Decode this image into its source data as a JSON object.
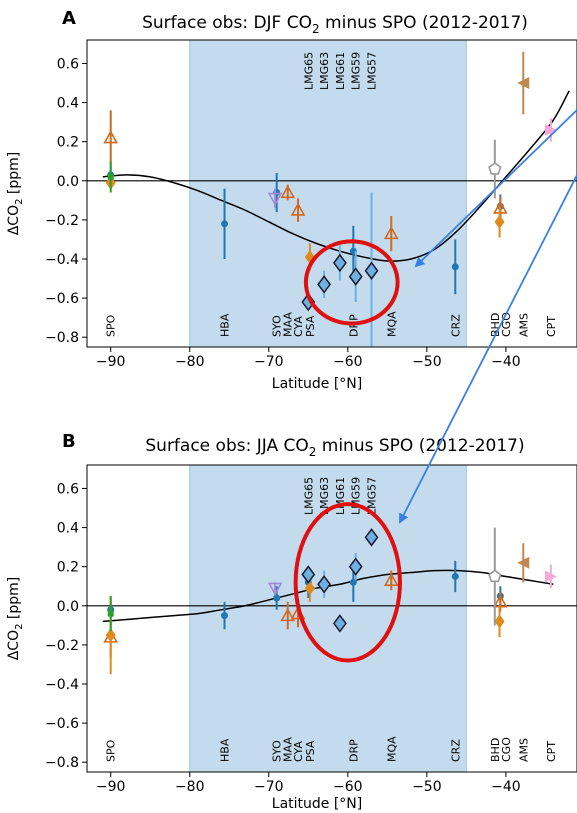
{
  "chart_data": [
    {
      "panel_letter": "A",
      "title": "Surface obs: DJF CO₂ minus SPO (2012-2017)",
      "title_main": "Surface obs: DJF CO",
      "title_sub": "2",
      "title_end": " minus SPO (2012-2017)",
      "type": "scatter",
      "xlabel": "Latitude [°N]",
      "ylabel": "ΔCO₂ [ppm]",
      "ylabel_main": "ΔCO",
      "ylabel_sub": "2",
      "ylabel_end": " [ppm]",
      "xlim": [
        -93,
        -31
      ],
      "ylim": [
        -0.85,
        0.72
      ],
      "xticks": [
        -90,
        -80,
        -70,
        -60,
        -50,
        -40
      ],
      "xtick_labels": [
        "−90",
        "−80",
        "−70",
        "−60",
        "−50",
        "−40"
      ],
      "yticks": [
        0.6,
        0.4,
        0.2,
        0.0,
        -0.2,
        -0.4,
        -0.6,
        -0.8
      ],
      "ytick_labels": [
        "0.6",
        "0.4",
        "0.2",
        "0.0",
        "−0.2",
        "−0.4",
        "−0.6",
        "−0.8"
      ],
      "shaded_region": [
        -80,
        -45
      ],
      "zero_line": 0,
      "fit_curve": {
        "x": [
          -91,
          -88,
          -85,
          -82,
          -79,
          -76,
          -73,
          -70,
          -67,
          -64,
          -61,
          -58,
          -55,
          -52,
          -49,
          -46,
          -43,
          -40,
          -37,
          -34,
          -32
        ],
        "y": [
          0.02,
          0.03,
          0.02,
          -0.01,
          -0.05,
          -0.1,
          -0.15,
          -0.21,
          -0.27,
          -0.32,
          -0.36,
          -0.39,
          -0.41,
          -0.4,
          -0.35,
          -0.25,
          -0.12,
          0.02,
          0.16,
          0.31,
          0.46
        ]
      },
      "station_labels": [
        {
          "text": "SPO",
          "x": -90
        },
        {
          "text": "HBA",
          "x": -75.6
        },
        {
          "text": "SYO",
          "x": -69
        },
        {
          "text": "MAA",
          "x": -67.6
        },
        {
          "text": "CYA",
          "x": -66.3
        },
        {
          "text": "PSA",
          "x": -64.8
        },
        {
          "text": "DRP",
          "x": -59.3
        },
        {
          "text": "MQA",
          "x": -54.5
        },
        {
          "text": "CRZ",
          "x": -46.4
        },
        {
          "text": "BHD",
          "x": -41.4
        },
        {
          "text": "CGO",
          "x": -40.0
        },
        {
          "text": "AMS",
          "x": -37.8
        },
        {
          "text": "CPT",
          "x": -34.3
        }
      ],
      "cruise_labels": [
        {
          "text": "LMG65",
          "x": -65
        },
        {
          "text": "LMG63",
          "x": -63
        },
        {
          "text": "LMG61",
          "x": -61
        },
        {
          "text": "LMG59",
          "x": -59
        },
        {
          "text": "LMG57",
          "x": -57
        }
      ],
      "series": [
        {
          "marker": "circle",
          "color": "#1f77b4",
          "points": [
            {
              "x": -90,
              "y": 0.03,
              "err": 0.05
            },
            {
              "x": -75.6,
              "y": -0.22,
              "err": 0.18
            },
            {
              "x": -69,
              "y": -0.06,
              "err": 0.1
            },
            {
              "x": -59.3,
              "y": -0.36,
              "err": 0.13
            },
            {
              "x": -46.4,
              "y": -0.44,
              "err": 0.14
            },
            {
              "x": -40.7,
              "y": -0.13,
              "err": 0.06
            }
          ]
        },
        {
          "marker": "open-triangle-up",
          "color": "#d2691e",
          "points": [
            {
              "x": -90,
              "y": 0.22,
              "err": 0.14
            },
            {
              "x": -67.6,
              "y": -0.06,
              "err": 0.04
            },
            {
              "x": -66.3,
              "y": -0.15,
              "err": 0.06
            },
            {
              "x": -54.5,
              "y": -0.27,
              "err": 0.09
            },
            {
              "x": -40.7,
              "y": -0.14,
              "err": 0.06
            }
          ]
        },
        {
          "marker": "diamond",
          "color": "#e08a1e",
          "points": [
            {
              "x": -90,
              "y": -0.01,
              "err": 0.04
            },
            {
              "x": -64.8,
              "y": -0.39,
              "err": 0.07
            },
            {
              "x": -40.8,
              "y": -0.21,
              "err": 0.08
            }
          ]
        },
        {
          "marker": "square",
          "color": "#2ca02c",
          "points": [
            {
              "x": -90,
              "y": 0.02,
              "err": 0.08
            }
          ]
        },
        {
          "marker": "open-triangle-down",
          "color": "#a08cd6",
          "points": [
            {
              "x": -69.2,
              "y": -0.09,
              "err": 0.05
            }
          ]
        },
        {
          "marker": "open-pentagon",
          "color": "#999999",
          "points": [
            {
              "x": -41.4,
              "y": 0.06,
              "err": 0.15
            }
          ]
        },
        {
          "marker": "triangle-left",
          "color": "#c08850",
          "points": [
            {
              "x": -37.8,
              "y": 0.5,
              "err": 0.16
            }
          ]
        },
        {
          "marker": "triangle-right",
          "color": "#f7a8d8",
          "points": [
            {
              "x": -34.3,
              "y": 0.26,
              "err": 0.06
            }
          ]
        },
        {
          "marker": "diamond-outline",
          "color": "#6fb0e0",
          "points": [
            {
              "x": -65,
              "y": -0.62,
              "err": 0.04
            },
            {
              "x": -63,
              "y": -0.53,
              "err": 0.07
            },
            {
              "x": -61,
              "y": -0.42,
              "err": 0.09
            },
            {
              "x": -59,
              "y": -0.49,
              "err": 0.13
            },
            {
              "x": -57,
              "y": -0.46,
              "err": 0.4
            }
          ]
        }
      ],
      "highlight_ellipse": {
        "cx": -59.5,
        "cy": -0.52,
        "rx": 5.8,
        "ry": 0.21
      }
    },
    {
      "panel_letter": "B",
      "title": "Surface obs: JJA CO₂ minus SPO (2012-2017)",
      "title_main": "Surface obs: JJA CO",
      "title_sub": "2",
      "title_end": " minus SPO (2012-2017)",
      "type": "scatter",
      "xlabel": "Latitude [°N]",
      "ylabel": "ΔCO₂ [ppm]",
      "ylabel_main": "ΔCO",
      "ylabel_sub": "2",
      "ylabel_end": " [ppm]",
      "xlim": [
        -93,
        -31
      ],
      "ylim": [
        -0.85,
        0.72
      ],
      "xticks": [
        -90,
        -80,
        -70,
        -60,
        -50,
        -40
      ],
      "xtick_labels": [
        "−90",
        "−80",
        "−70",
        "−60",
        "−50",
        "−40"
      ],
      "yticks": [
        0.6,
        0.4,
        0.2,
        0.0,
        -0.2,
        -0.4,
        -0.6,
        -0.8
      ],
      "ytick_labels": [
        "0.6",
        "0.4",
        "0.2",
        "0.0",
        "−0.2",
        "−0.4",
        "−0.6",
        "−0.8"
      ],
      "shaded_region": [
        -80,
        -45
      ],
      "zero_line": 0,
      "fit_curve": {
        "x": [
          -91,
          -88,
          -85,
          -82,
          -79,
          -76,
          -73,
          -70,
          -67,
          -64,
          -61,
          -58,
          -55,
          -52,
          -49,
          -46,
          -43,
          -40,
          -37,
          -34
        ],
        "y": [
          -0.08,
          -0.07,
          -0.06,
          -0.05,
          -0.04,
          -0.02,
          0.0,
          0.03,
          0.06,
          0.09,
          0.11,
          0.14,
          0.16,
          0.17,
          0.18,
          0.18,
          0.17,
          0.15,
          0.13,
          0.11
        ]
      },
      "station_labels": [
        {
          "text": "SPO",
          "x": -90
        },
        {
          "text": "HBA",
          "x": -75.6
        },
        {
          "text": "SYO",
          "x": -69
        },
        {
          "text": "MAA",
          "x": -67.6
        },
        {
          "text": "CYA",
          "x": -66.3
        },
        {
          "text": "PSA",
          "x": -64.8
        },
        {
          "text": "DRP",
          "x": -59.3
        },
        {
          "text": "MQA",
          "x": -54.5
        },
        {
          "text": "CRZ",
          "x": -46.4
        },
        {
          "text": "BHD",
          "x": -41.4
        },
        {
          "text": "CGO",
          "x": -40.0
        },
        {
          "text": "AMS",
          "x": -37.8
        },
        {
          "text": "CPT",
          "x": -34.3
        }
      ],
      "cruise_labels": [
        {
          "text": "LMG65",
          "x": -65
        },
        {
          "text": "LMG63",
          "x": -63
        },
        {
          "text": "LMG61",
          "x": -61
        },
        {
          "text": "LMG59",
          "x": -59
        },
        {
          "text": "LMG57",
          "x": -57
        }
      ],
      "series": [
        {
          "marker": "circle",
          "color": "#1f77b4",
          "points": [
            {
              "x": -90,
              "y": -0.02,
              "err": 0.04
            },
            {
              "x": -75.6,
              "y": -0.05,
              "err": 0.07
            },
            {
              "x": -69,
              "y": 0.04,
              "err": 0.06
            },
            {
              "x": -65,
              "y": 0.12,
              "err": 0.08
            },
            {
              "x": -59.3,
              "y": 0.12,
              "err": 0.1
            },
            {
              "x": -46.4,
              "y": 0.15,
              "err": 0.08
            },
            {
              "x": -40.7,
              "y": 0.05,
              "err": 0.05
            }
          ]
        },
        {
          "marker": "open-triangle-up",
          "color": "#d2691e",
          "points": [
            {
              "x": -90,
              "y": -0.16,
              "err": 0.1
            },
            {
              "x": -67.6,
              "y": -0.05,
              "err": 0.07
            },
            {
              "x": -66.3,
              "y": -0.04,
              "err": 0.07
            },
            {
              "x": -54.5,
              "y": 0.13,
              "err": 0.05
            },
            {
              "x": -40.7,
              "y": 0.02,
              "err": 0.05
            }
          ]
        },
        {
          "marker": "diamond",
          "color": "#e08a1e",
          "points": [
            {
              "x": -90,
              "y": -0.15,
              "err": 0.2
            },
            {
              "x": -64.8,
              "y": 0.09,
              "err": 0.07
            },
            {
              "x": -40.8,
              "y": -0.08,
              "err": 0.08
            }
          ]
        },
        {
          "marker": "square",
          "color": "#2ca02c",
          "points": [
            {
              "x": -90,
              "y": -0.04,
              "err": 0.09
            }
          ]
        },
        {
          "marker": "open-triangle-down",
          "color": "#a08cd6",
          "points": [
            {
              "x": -69.2,
              "y": 0.09,
              "err": 0.03
            }
          ]
        },
        {
          "marker": "open-pentagon",
          "color": "#999999",
          "points": [
            {
              "x": -41.4,
              "y": 0.15,
              "err": 0.25
            }
          ]
        },
        {
          "marker": "triangle-left",
          "color": "#c08850",
          "points": [
            {
              "x": -37.8,
              "y": 0.22,
              "err": 0.1
            }
          ]
        },
        {
          "marker": "triangle-right",
          "color": "#f7a8d8",
          "points": [
            {
              "x": -34.3,
              "y": 0.15,
              "err": 0.06
            }
          ]
        },
        {
          "marker": "diamond-outline",
          "color": "#6fb0e0",
          "points": [
            {
              "x": -65,
              "y": 0.16,
              "err": 0.04
            },
            {
              "x": -63,
              "y": 0.11,
              "err": 0.07
            },
            {
              "x": -61,
              "y": -0.09,
              "err": 0.04
            },
            {
              "x": -59,
              "y": 0.2,
              "err": 0.07
            },
            {
              "x": -57,
              "y": 0.35,
              "err": 0.03
            }
          ]
        }
      ],
      "highlight_ellipse": {
        "cx": -60,
        "cy": 0.12,
        "rx": 6.6,
        "ry": 0.4
      }
    }
  ]
}
